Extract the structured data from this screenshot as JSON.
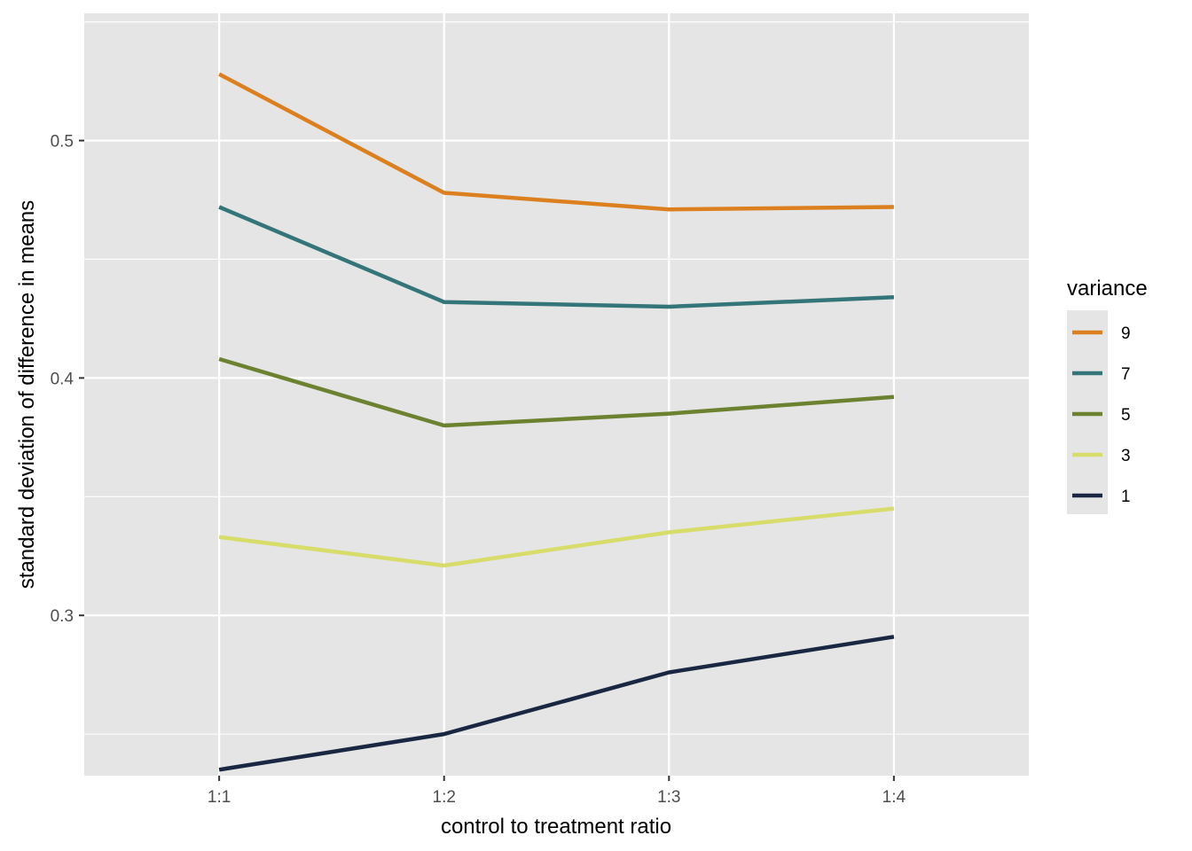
{
  "chart_data": {
    "type": "line",
    "categories": [
      "1:1",
      "1:2",
      "1:3",
      "1:4"
    ],
    "xlabel": "control to treatment ratio",
    "ylabel": "standard deviation of difference in means",
    "ylim": [
      0.2325,
      0.5536
    ],
    "yticks": [
      0.3,
      0.4,
      0.5
    ],
    "ytick_labels": [
      "0.3",
      "0.4",
      "0.5"
    ],
    "grid": true,
    "legend": {
      "title": "variance",
      "position": "right",
      "order": [
        "9",
        "7",
        "5",
        "3",
        "1"
      ]
    },
    "series": [
      {
        "name": "9",
        "color": "#DC801F",
        "values": [
          0.528,
          0.478,
          0.471,
          0.472
        ]
      },
      {
        "name": "7",
        "color": "#347579",
        "values": [
          0.472,
          0.432,
          0.43,
          0.434
        ]
      },
      {
        "name": "5",
        "color": "#6C8230",
        "values": [
          0.408,
          0.38,
          0.385,
          0.392
        ]
      },
      {
        "name": "3",
        "color": "#D8DC6A",
        "values": [
          0.333,
          0.321,
          0.335,
          0.345
        ]
      },
      {
        "name": "1",
        "color": "#1A2742",
        "values": [
          0.235,
          0.25,
          0.276,
          0.291
        ]
      }
    ]
  },
  "style": {
    "panel_background": "#E5E5E5",
    "grid_color": "#FFFFFF",
    "tick_color": "#333333"
  }
}
